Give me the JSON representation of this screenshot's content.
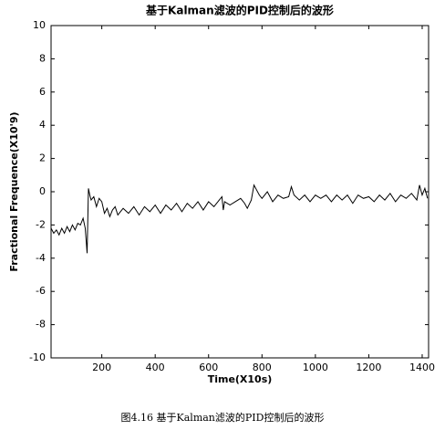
{
  "chart_data": {
    "type": "line",
    "title": "基于Kalman滤波的PID控制后的波形",
    "x_label": "Time(X10s)",
    "y_label": "Fractional Frequence(X10'9)",
    "caption": "图4.16 基于Kalman滤波的PID控制后的波形",
    "color": "#000000",
    "grid": false,
    "xlim": [
      10,
      1424
    ],
    "ylim": [
      -10,
      10
    ],
    "xticks": [
      200,
      400,
      600,
      800,
      1000,
      1200,
      1400
    ],
    "yticks": [
      -10,
      -8,
      -6,
      -4,
      -2,
      0,
      2,
      4,
      6,
      8,
      10
    ],
    "x": [
      10,
      20,
      30,
      40,
      50,
      60,
      70,
      80,
      90,
      100,
      110,
      120,
      130,
      138,
      145,
      150,
      155,
      160,
      170,
      180,
      190,
      200,
      210,
      220,
      230,
      240,
      250,
      260,
      280,
      300,
      320,
      340,
      360,
      380,
      400,
      420,
      440,
      460,
      480,
      500,
      520,
      540,
      560,
      580,
      600,
      620,
      640,
      650,
      655,
      660,
      680,
      700,
      720,
      735,
      745,
      760,
      770,
      780,
      790,
      800,
      820,
      840,
      860,
      880,
      900,
      910,
      920,
      940,
      960,
      980,
      1000,
      1020,
      1040,
      1060,
      1080,
      1100,
      1120,
      1140,
      1160,
      1180,
      1200,
      1220,
      1240,
      1260,
      1280,
      1300,
      1320,
      1340,
      1360,
      1380,
      1390,
      1400,
      1410,
      1420
    ],
    "values": [
      -2.2,
      -2.5,
      -2.3,
      -2.6,
      -2.2,
      -2.5,
      -2.1,
      -2.4,
      -2.0,
      -2.3,
      -1.9,
      -2.0,
      -1.6,
      -2.2,
      -3.7,
      0.2,
      -0.2,
      -0.5,
      -0.3,
      -0.9,
      -0.4,
      -0.6,
      -1.3,
      -1.0,
      -1.5,
      -1.1,
      -0.9,
      -1.4,
      -1.0,
      -1.3,
      -0.9,
      -1.4,
      -0.9,
      -1.2,
      -0.8,
      -1.3,
      -0.8,
      -1.1,
      -0.7,
      -1.2,
      -0.7,
      -1.0,
      -0.6,
      -1.1,
      -0.6,
      -0.9,
      -0.5,
      -0.3,
      -1.1,
      -0.6,
      -0.8,
      -0.6,
      -0.4,
      -0.7,
      -1.0,
      -0.5,
      0.4,
      0.1,
      -0.2,
      -0.4,
      0.0,
      -0.6,
      -0.2,
      -0.4,
      -0.3,
      0.3,
      -0.2,
      -0.5,
      -0.2,
      -0.6,
      -0.2,
      -0.4,
      -0.2,
      -0.6,
      -0.2,
      -0.5,
      -0.2,
      -0.7,
      -0.2,
      -0.4,
      -0.3,
      -0.6,
      -0.2,
      -0.5,
      -0.1,
      -0.6,
      -0.2,
      -0.4,
      -0.1,
      -0.5,
      0.4,
      -0.2,
      0.2,
      -0.4
    ]
  }
}
